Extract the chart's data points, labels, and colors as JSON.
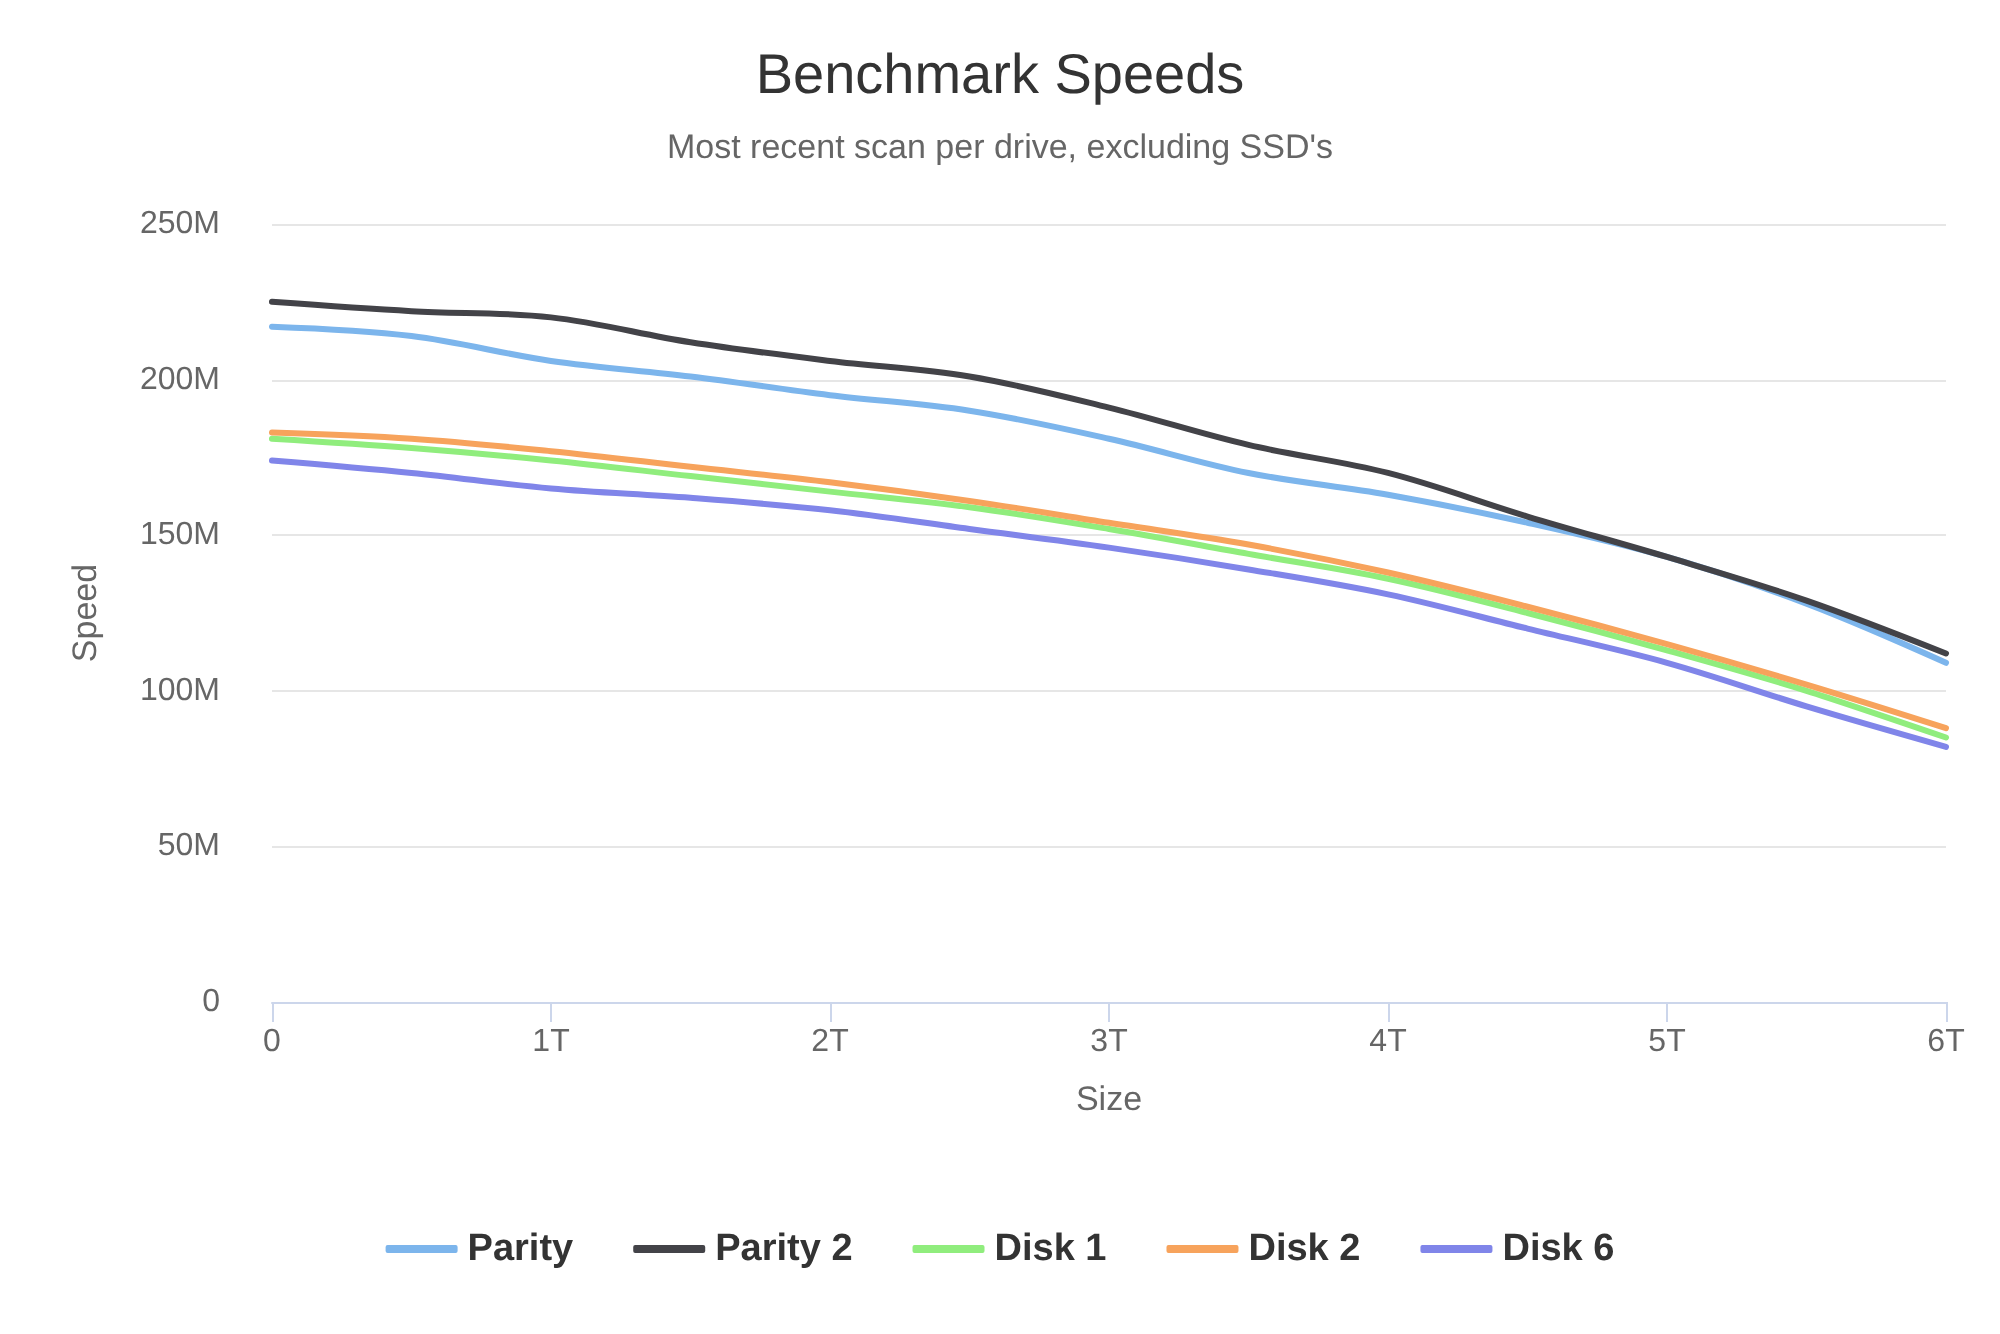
{
  "chart_data": {
    "type": "line",
    "title": "Benchmark Speeds",
    "subtitle": "Most recent scan per drive, excluding SSD's",
    "xlabel": "Size",
    "ylabel": "Speed",
    "x": [
      0,
      0.5,
      1,
      1.5,
      2,
      2.5,
      3,
      3.5,
      4,
      4.5,
      5,
      5.5,
      6
    ],
    "series": [
      {
        "name": "Parity",
        "color": "#7cb5ec",
        "values": [
          217,
          214,
          206,
          201,
          195,
          190,
          181,
          170,
          163,
          154,
          143,
          128,
          109
        ]
      },
      {
        "name": "Parity 2",
        "color": "#434348",
        "values": [
          225,
          222,
          220,
          212,
          206,
          201,
          191,
          179,
          170,
          156,
          143,
          129,
          112
        ]
      },
      {
        "name": "Disk 1",
        "color": "#90ed7d",
        "values": [
          181,
          178,
          174,
          169,
          164,
          159,
          152,
          144,
          136,
          125,
          113,
          100,
          85
        ]
      },
      {
        "name": "Disk 2",
        "color": "#f7a35c",
        "values": [
          183,
          181,
          177,
          172,
          167,
          161,
          154,
          147,
          138,
          127,
          115,
          102,
          88
        ]
      },
      {
        "name": "Disk 6",
        "color": "#8085e9",
        "values": [
          174,
          170,
          165,
          162,
          158,
          152,
          146,
          139,
          131,
          120,
          109,
          95,
          82
        ]
      }
    ],
    "xlim": [
      0,
      6
    ],
    "xticks": [
      0,
      {
        "value": 1,
        "label": "1T"
      },
      {
        "value": 2,
        "label": "2T"
      },
      {
        "value": 3,
        "label": "3T"
      },
      {
        "value": 4,
        "label": "4T"
      },
      {
        "value": 5,
        "label": "5T"
      },
      {
        "value": 6,
        "label": "6T"
      }
    ],
    "ylim": [
      0,
      250
    ],
    "yticks": [
      0,
      {
        "value": 50,
        "label": "50M"
      },
      {
        "value": 100,
        "label": "100M"
      },
      {
        "value": 150,
        "label": "150M"
      },
      {
        "value": 200,
        "label": "200M"
      },
      {
        "value": 250,
        "label": "250M"
      }
    ],
    "grid": "y",
    "legend": "bottom",
    "marker": "none",
    "line_style": "solid"
  }
}
